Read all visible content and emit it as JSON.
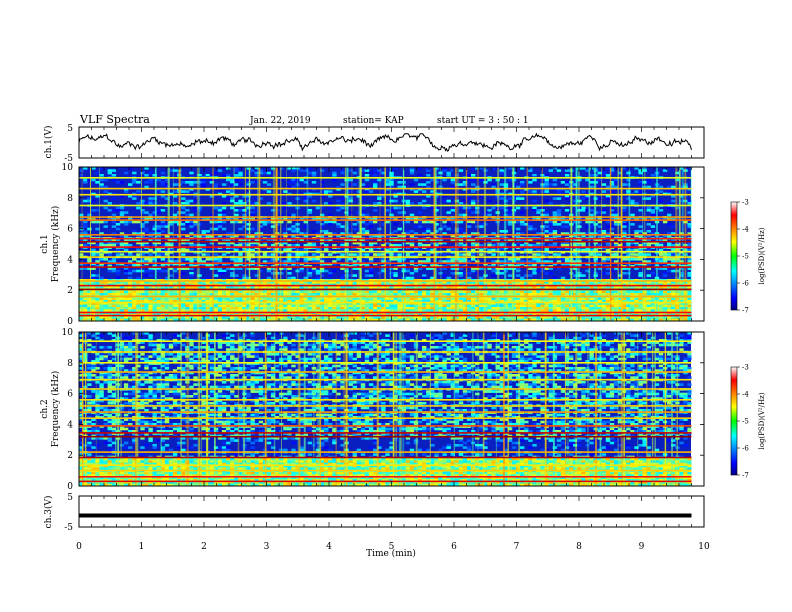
{
  "header": {
    "title": "VLF Spectra",
    "date": "Jan. 22, 2019",
    "station": "station= KAP",
    "start_time": "start  UT  =   3  : 50 : 1"
  },
  "chart_data": {
    "type": "heatmap",
    "title": "VLF Spectra",
    "xlabel": "Time  (min)",
    "xlim": [
      0,
      10
    ],
    "x_ticks": [
      "0",
      "1",
      "2",
      "3",
      "4",
      "5",
      "6",
      "7",
      "8",
      "9",
      "10"
    ],
    "panels": [
      {
        "id": "ch1-waveform",
        "type": "line",
        "ylabel": "ch.1(V)",
        "ylim": [
          -5,
          5
        ],
        "y_ticks": [
          "5",
          "-5"
        ],
        "data_end_min": 9.8,
        "series": [
          {
            "kind": "noisy-waveform",
            "mean": 0,
            "amplitude": 2.8
          }
        ]
      },
      {
        "id": "ch1-spectrogram",
        "type": "heatmap",
        "ylabel_top": "ch.1",
        "ylabel": "Frequency  (kHz)",
        "ylim": [
          0,
          10
        ],
        "y_ticks": [
          "0",
          "2",
          "4",
          "6",
          "8",
          "10"
        ],
        "data_end_min": 9.8,
        "colorbar": {
          "label": "log(PSD)(V²/Hz)",
          "range": [
            -7,
            -3
          ],
          "ticks": [
            "-3",
            "-4",
            "-5",
            "-6",
            "-7"
          ]
        },
        "dense_low_khz": [
          0,
          2.8
        ],
        "sparse_khz": [
          [
            2.8,
            3.4
          ],
          [
            5.8,
            6.3
          ],
          [
            6.8,
            10
          ]
        ],
        "lines_khz": [
          {
            "f": 0.35,
            "level": -3.4
          },
          {
            "f": 0.55,
            "level": -3.5
          },
          {
            "f": 1.2,
            "level": -4.4
          },
          {
            "f": 1.6,
            "level": -4.2
          },
          {
            "f": 2.05,
            "level": -3.1
          },
          {
            "f": 2.3,
            "level": -3.4
          },
          {
            "f": 2.6,
            "level": -4.2
          },
          {
            "f": 3.5,
            "level": -3.3
          },
          {
            "f": 3.75,
            "level": -3.7
          },
          {
            "f": 4.15,
            "level": -4.4
          },
          {
            "f": 4.5,
            "level": -4.6
          },
          {
            "f": 4.8,
            "level": -3.5
          },
          {
            "f": 5.15,
            "level": -3.2
          },
          {
            "f": 5.35,
            "level": -3.6
          },
          {
            "f": 5.6,
            "level": -4.0
          },
          {
            "f": 6.55,
            "level": -3.9
          },
          {
            "f": 6.75,
            "level": -4.1
          },
          {
            "f": 7.5,
            "level": -4.6
          },
          {
            "f": 8.2,
            "level": -4.4
          },
          {
            "f": 8.6,
            "level": -4.3
          },
          {
            "f": 9.3,
            "level": -4.6
          }
        ]
      },
      {
        "id": "ch2-spectrogram",
        "type": "heatmap",
        "ylabel_top": "ch.2",
        "ylabel": "Frequency  (kHz)",
        "ylim": [
          0,
          10
        ],
        "y_ticks": [
          "0",
          "2",
          "4",
          "6",
          "8",
          "10"
        ],
        "data_end_min": 9.8,
        "colorbar": {
          "label": "log(PSD)(V²/Hz)",
          "range": [
            -7,
            -3
          ],
          "ticks": [
            "-3",
            "-4",
            "-5",
            "-6",
            "-7"
          ]
        },
        "dense_low_khz": [
          0,
          1.8
        ],
        "sparse_khz": [
          [
            2.0,
            3.1
          ],
          [
            9.6,
            10
          ]
        ],
        "lines_khz": [
          {
            "f": 0.3,
            "level": -3.4
          },
          {
            "f": 0.6,
            "level": -3.6
          },
          {
            "f": 1.0,
            "level": -4.3
          },
          {
            "f": 1.35,
            "level": -4.4
          },
          {
            "f": 1.85,
            "level": -3.2
          },
          {
            "f": 2.2,
            "level": -4.2
          },
          {
            "f": 3.2,
            "level": -3.1
          },
          {
            "f": 3.45,
            "level": -3.3
          },
          {
            "f": 3.9,
            "level": -3.8
          },
          {
            "f": 4.4,
            "level": -4.3
          },
          {
            "f": 4.8,
            "level": -4.1
          },
          {
            "f": 5.2,
            "level": -4.3
          },
          {
            "f": 5.6,
            "level": -4.4
          },
          {
            "f": 6.3,
            "level": -4.3
          },
          {
            "f": 6.9,
            "level": -4.4
          },
          {
            "f": 7.4,
            "level": -4.2
          },
          {
            "f": 8.0,
            "level": -4.5
          },
          {
            "f": 8.7,
            "level": -4.4
          },
          {
            "f": 9.4,
            "level": -4.5
          }
        ]
      },
      {
        "id": "ch3-waveform",
        "type": "line",
        "ylabel": "ch.3(V)",
        "ylim": [
          -5,
          5
        ],
        "y_ticks": [
          "5",
          "-5"
        ],
        "data_end_min": 9.8,
        "series": [
          {
            "kind": "flat",
            "mean": -1.3,
            "amplitude": 0.1
          }
        ]
      }
    ]
  }
}
